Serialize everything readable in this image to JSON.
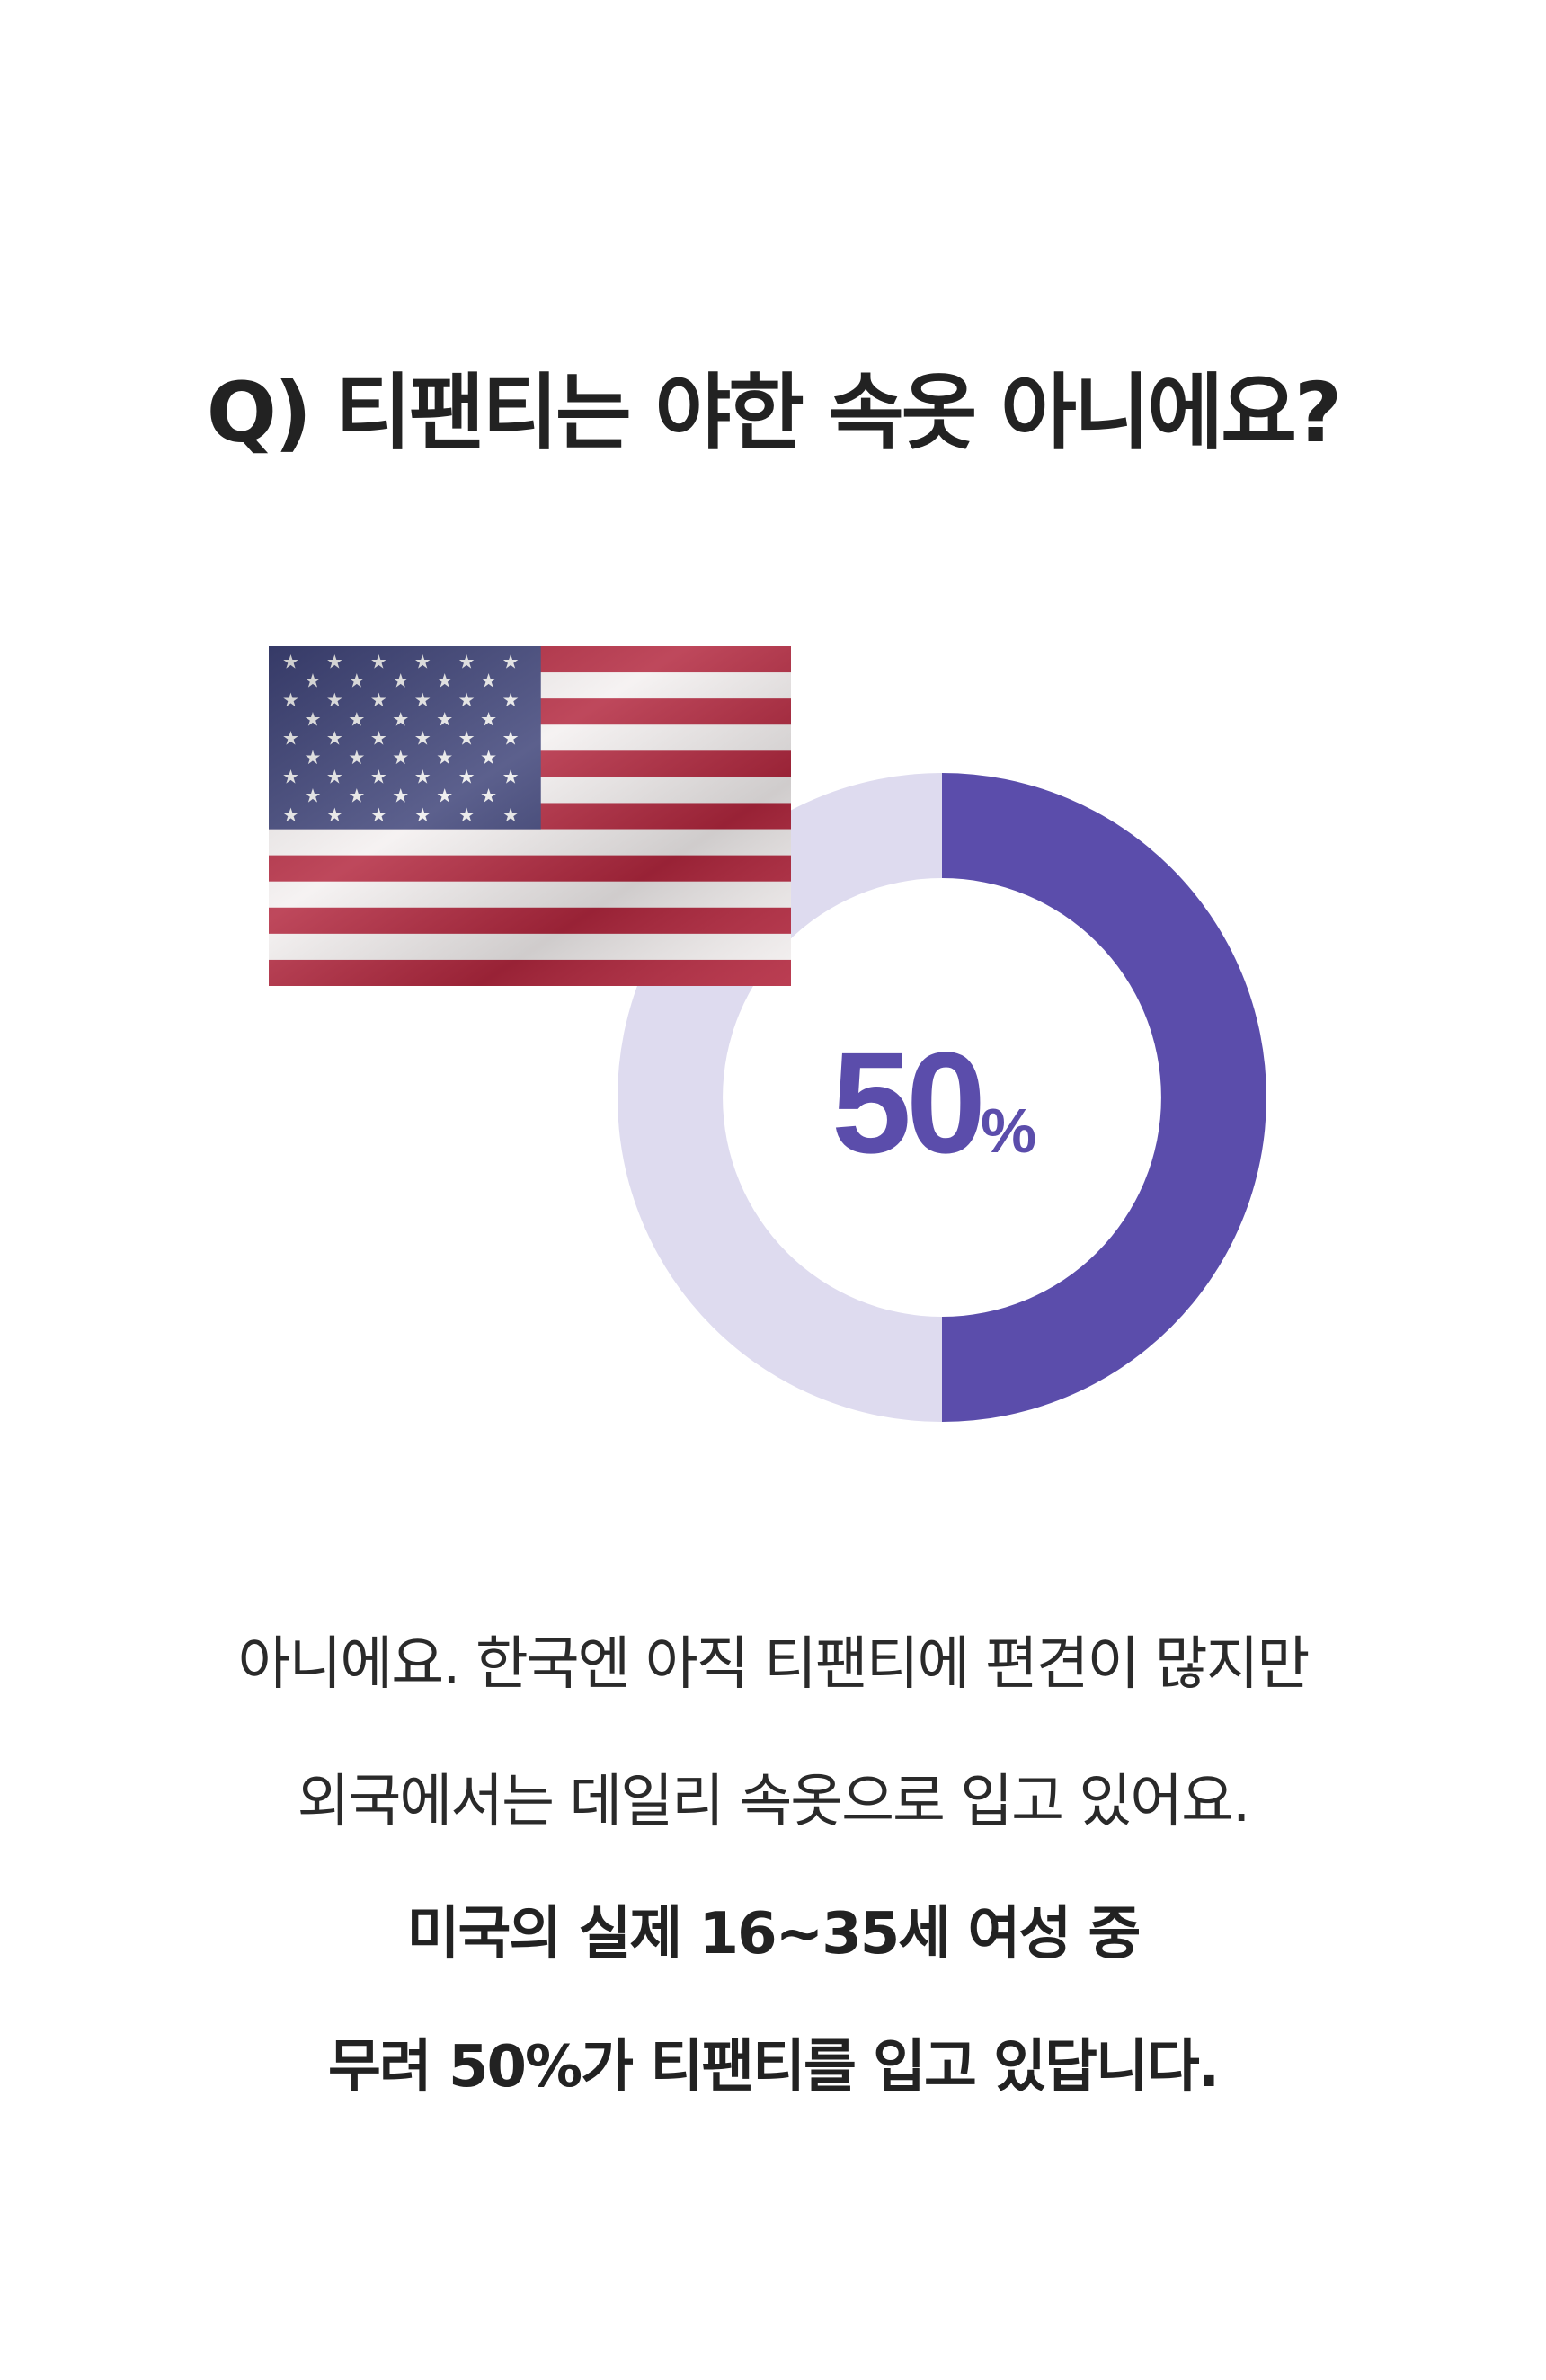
{
  "title": "Q) 티팬티는 야한 속옷 아니에요?",
  "flag": {
    "icon": "us-flag-image"
  },
  "donut": {
    "value_percent": 50,
    "value_label": "50",
    "unit": "%",
    "colors": {
      "filled": "#5b4dab",
      "remaining": "#dedbef"
    }
  },
  "body": {
    "lines": [
      "아니에요. 한국엔 아직 티팬티에 편견이 많지만",
      "외국에서는 데일리 속옷으로 입고 있어요.",
      "미국의 실제 16~35세 여성 중",
      "무려 50%가 티팬티를 입고 있답니다."
    ]
  }
}
